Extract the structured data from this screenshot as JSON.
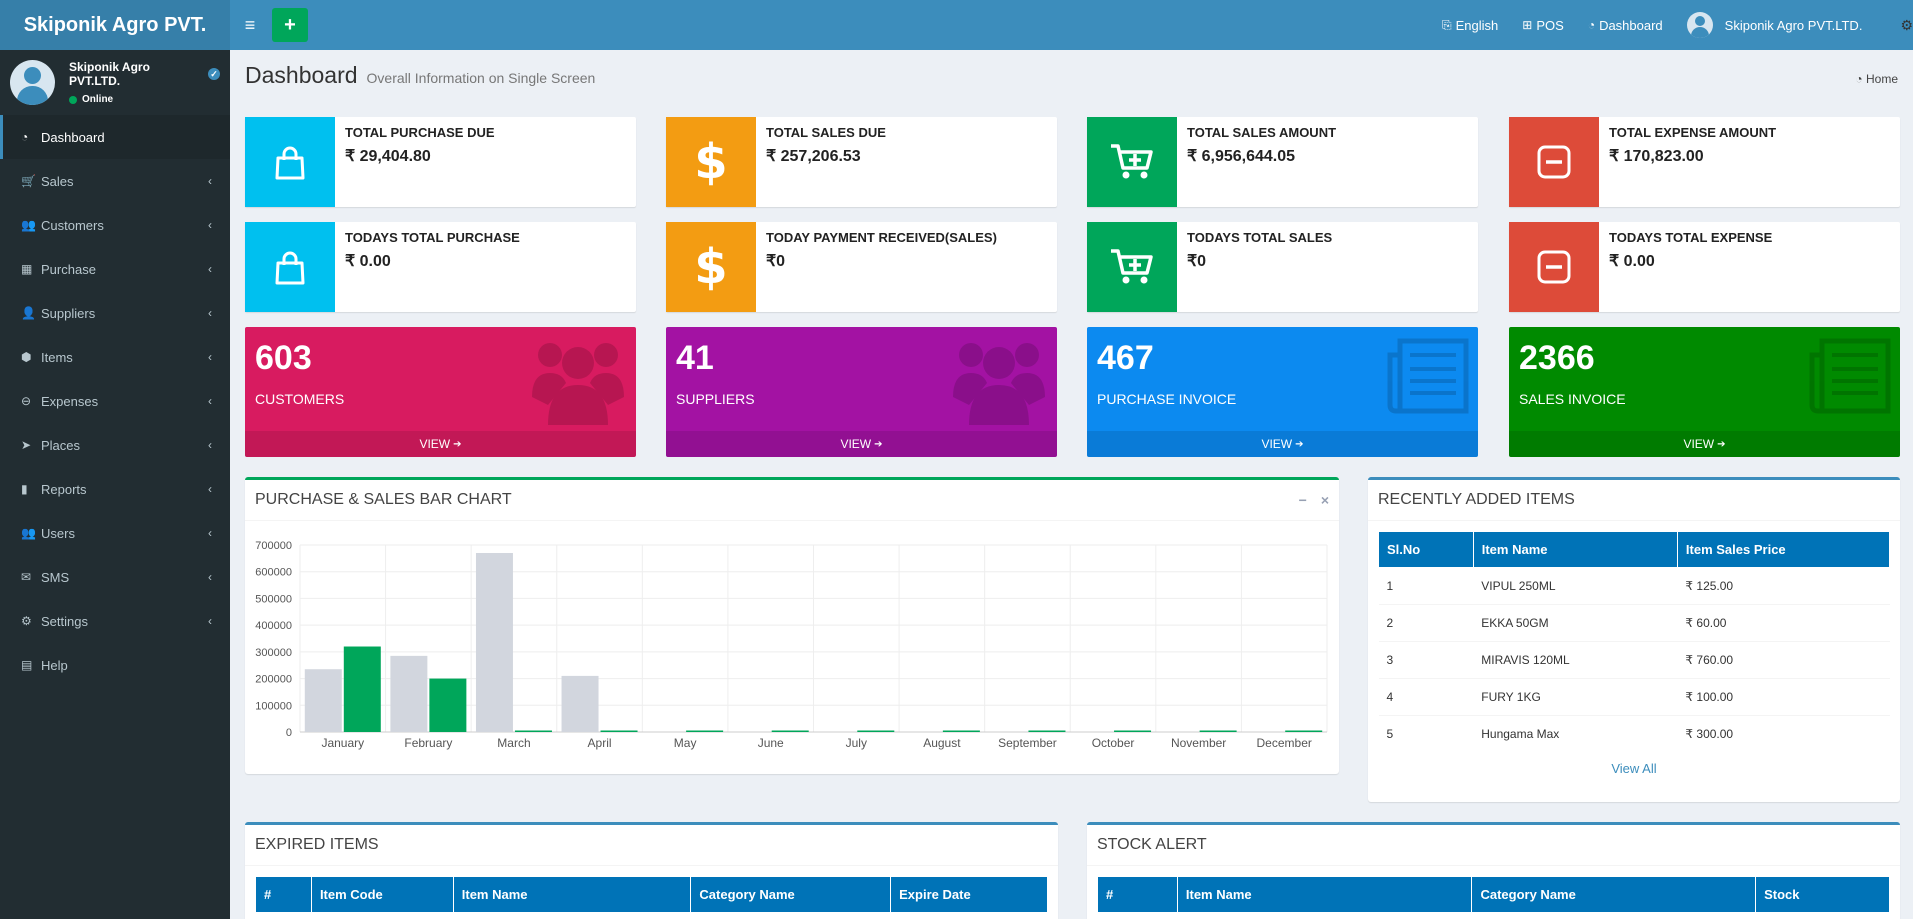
{
  "app": {
    "brand": "Skiponik Agro PVT."
  },
  "topnav": [
    {
      "name": "language",
      "icon": "language-icon",
      "glyph": "⎘",
      "label": "English"
    },
    {
      "name": "pos",
      "icon": "plus-square-icon",
      "glyph": "⊞",
      "label": "POS"
    },
    {
      "name": "dashboard",
      "icon": "dashboard-icon",
      "glyph": "◔",
      "label": "Dashboard"
    }
  ],
  "user": {
    "name": "Skiponik Agro PVT.LTD.",
    "status": "Online"
  },
  "sidebar": {
    "items": [
      {
        "label": "Dashboard",
        "icon": "dashboard-icon",
        "glyph": "◔",
        "active": true,
        "chevron": false
      },
      {
        "label": "Sales",
        "icon": "cart-icon",
        "glyph": "🛒",
        "chevron": true
      },
      {
        "label": "Customers",
        "icon": "users-icon",
        "glyph": "👥",
        "chevron": true
      },
      {
        "label": "Purchase",
        "icon": "grid-icon",
        "glyph": "▦",
        "chevron": true
      },
      {
        "label": "Suppliers",
        "icon": "user-plus-icon",
        "glyph": "👤",
        "chevron": true
      },
      {
        "label": "Items",
        "icon": "cubes-icon",
        "glyph": "⬢",
        "chevron": true
      },
      {
        "label": "Expenses",
        "icon": "minus-circle-icon",
        "glyph": "⊖",
        "chevron": true
      },
      {
        "label": "Places",
        "icon": "paper-plane-icon",
        "glyph": "➤",
        "chevron": true
      },
      {
        "label": "Reports",
        "icon": "bar-chart-icon",
        "glyph": "▮",
        "chevron": true
      },
      {
        "label": "Users",
        "icon": "users-icon",
        "glyph": "👥",
        "chevron": true
      },
      {
        "label": "SMS",
        "icon": "envelope-icon",
        "glyph": "✉",
        "chevron": true
      },
      {
        "label": "Settings",
        "icon": "cogs-icon",
        "glyph": "⚙",
        "chevron": true
      },
      {
        "label": "Help",
        "icon": "book-icon",
        "glyph": "▤",
        "chevron": false
      }
    ]
  },
  "header": {
    "title": "Dashboard",
    "subtitle": "Overall Information on Single Screen",
    "breadcrumb": "Home"
  },
  "info_boxes": [
    {
      "label": "TOTAL PURCHASE DUE",
      "value": "₹ 29,404.80",
      "color": "#00c0ef",
      "icon": "bag-icon"
    },
    {
      "label": "TOTAL SALES DUE",
      "value": "₹ 257,206.53",
      "color": "#f39c12",
      "icon": "dollar-icon"
    },
    {
      "label": "TOTAL SALES AMOUNT",
      "value": "₹ 6,956,644.05",
      "color": "#00a65a",
      "icon": "cart-plus-icon"
    },
    {
      "label": "TOTAL EXPENSE AMOUNT",
      "value": "₹ 170,823.00",
      "color": "#dd4b39",
      "icon": "minus-square-icon"
    },
    {
      "label": "TODAYS TOTAL PURCHASE",
      "value": "₹ 0.00",
      "color": "#00c0ef",
      "icon": "bag-icon"
    },
    {
      "label": "TODAY PAYMENT RECEIVED(SALES)",
      "value": "₹0",
      "color": "#f39c12",
      "icon": "dollar-icon"
    },
    {
      "label": "TODAYS TOTAL SALES",
      "value": "₹0",
      "color": "#00a65a",
      "icon": "cart-plus-icon"
    },
    {
      "label": "TODAYS TOTAL EXPENSE",
      "value": "₹ 0.00",
      "color": "#dd4b39",
      "icon": "minus-square-icon"
    }
  ],
  "small_boxes": [
    {
      "number": "603",
      "label": "CUSTOMERS",
      "footer": "VIEW",
      "color": "#d81b60",
      "icon": "users-icon"
    },
    {
      "number": "41",
      "label": "SUPPLIERS",
      "footer": "VIEW",
      "color": "#a312a3",
      "icon": "users-icon"
    },
    {
      "number": "467",
      "label": "PURCHASE INVOICE",
      "footer": "VIEW",
      "color": "#0c8af0",
      "icon": "newspaper-icon"
    },
    {
      "number": "2366",
      "label": "SALES INVOICE",
      "footer": "VIEW",
      "color": "#008a00",
      "icon": "newspaper-icon"
    }
  ],
  "chart_panel": {
    "title": "PURCHASE & SALES BAR CHART"
  },
  "chart_data": {
    "type": "bar",
    "categories": [
      "January",
      "February",
      "March",
      "April",
      "May",
      "June",
      "July",
      "August",
      "September",
      "October",
      "November",
      "December"
    ],
    "series": [
      {
        "values": [
          235000,
          285000,
          670000,
          210000,
          0,
          0,
          0,
          0,
          0,
          0,
          0,
          0
        ],
        "color": "#d2d6de"
      },
      {
        "values": [
          320000,
          200000,
          3000,
          5000,
          2000,
          2000,
          2000,
          2000,
          2000,
          2000,
          2000,
          2000
        ],
        "color": "#00a65a"
      }
    ],
    "yticks": [
      "0",
      "100000",
      "200000",
      "300000",
      "400000",
      "500000",
      "600000",
      "700000"
    ],
    "ylim": [
      0,
      700000
    ],
    "grid": true
  },
  "recent_items": {
    "title": "RECENTLY ADDED ITEMS",
    "columns": [
      "Sl.No",
      "Item Name",
      "Item Sales Price"
    ],
    "rows": [
      [
        "1",
        "VIPUL 250ML",
        "₹ 125.00"
      ],
      [
        "2",
        "EKKA 50GM",
        "₹ 60.00"
      ],
      [
        "3",
        "MIRAVIS 120ML",
        "₹ 760.00"
      ],
      [
        "4",
        "FURY 1KG",
        "₹ 100.00"
      ],
      [
        "5",
        "Hungama Max",
        "₹ 300.00"
      ]
    ],
    "view_all": "View All"
  },
  "expired_items": {
    "title": "EXPIRED ITEMS",
    "columns": [
      "#",
      "Item Code",
      "Item Name",
      "Category Name",
      "Expire Date"
    ]
  },
  "stock_alert": {
    "title": "STOCK ALERT",
    "columns": [
      "#",
      "Item Name",
      "Category Name",
      "Stock"
    ]
  }
}
